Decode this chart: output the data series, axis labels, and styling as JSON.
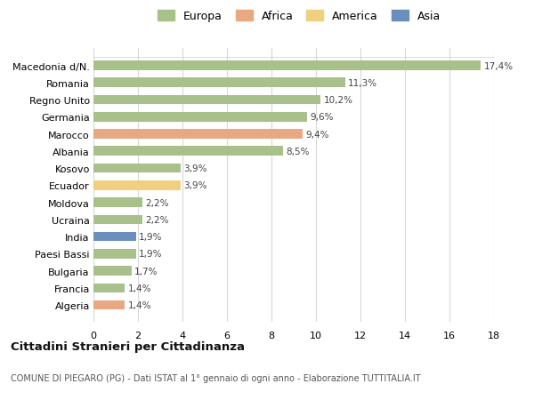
{
  "categories": [
    "Macedonia d/N.",
    "Romania",
    "Regno Unito",
    "Germania",
    "Marocco",
    "Albania",
    "Kosovo",
    "Ecuador",
    "Moldova",
    "Ucraina",
    "India",
    "Paesi Bassi",
    "Bulgaria",
    "Francia",
    "Algeria"
  ],
  "values": [
    17.4,
    11.3,
    10.2,
    9.6,
    9.4,
    8.5,
    3.9,
    3.9,
    2.2,
    2.2,
    1.9,
    1.9,
    1.7,
    1.4,
    1.4
  ],
  "labels": [
    "17,4%",
    "11,3%",
    "10,2%",
    "9,6%",
    "9,4%",
    "8,5%",
    "3,9%",
    "3,9%",
    "2,2%",
    "2,2%",
    "1,9%",
    "1,9%",
    "1,7%",
    "1,4%",
    "1,4%"
  ],
  "continents": [
    "Europa",
    "Europa",
    "Europa",
    "Europa",
    "Africa",
    "Europa",
    "Europa",
    "America",
    "Europa",
    "Europa",
    "Asia",
    "Europa",
    "Europa",
    "Europa",
    "Africa"
  ],
  "colors": {
    "Europa": "#a8c08a",
    "Africa": "#e8a882",
    "America": "#f0d080",
    "Asia": "#6a8fbf"
  },
  "title": "Cittadini Stranieri per Cittadinanza",
  "subtitle": "COMUNE DI PIEGARO (PG) - Dati ISTAT al 1° gennaio di ogni anno - Elaborazione TUTTITALIA.IT",
  "xlim": [
    0,
    18
  ],
  "xticks": [
    0,
    2,
    4,
    6,
    8,
    10,
    12,
    14,
    16,
    18
  ],
  "background_color": "#ffffff",
  "grid_color": "#d8d8d8"
}
